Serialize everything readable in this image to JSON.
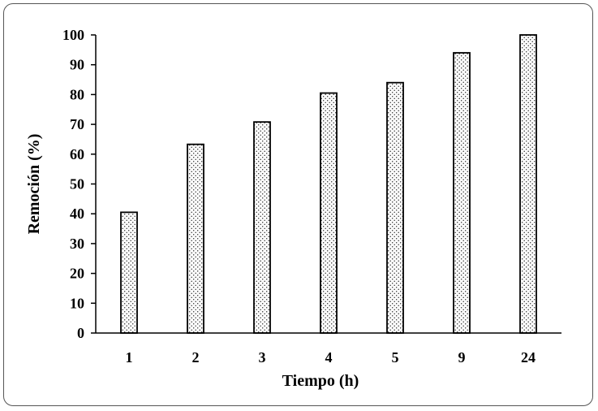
{
  "chart_data": {
    "type": "bar",
    "title": "",
    "xlabel": "Tiempo (h)",
    "ylabel": "Remoción (%)",
    "categories": [
      "1",
      "2",
      "3",
      "4",
      "5",
      "9",
      "24"
    ],
    "values": [
      40.5,
      63.3,
      70.8,
      80.5,
      84,
      94,
      100
    ],
    "ylim": [
      0,
      100
    ],
    "yticks": [
      0,
      10,
      20,
      30,
      40,
      50,
      60,
      70,
      80,
      90,
      100
    ],
    "grid": false,
    "legend": "none",
    "bar_fill": "dotted pattern",
    "colors": {
      "bar_border": "#000000",
      "bar_dots": "#333333",
      "frame": "#555555"
    }
  }
}
